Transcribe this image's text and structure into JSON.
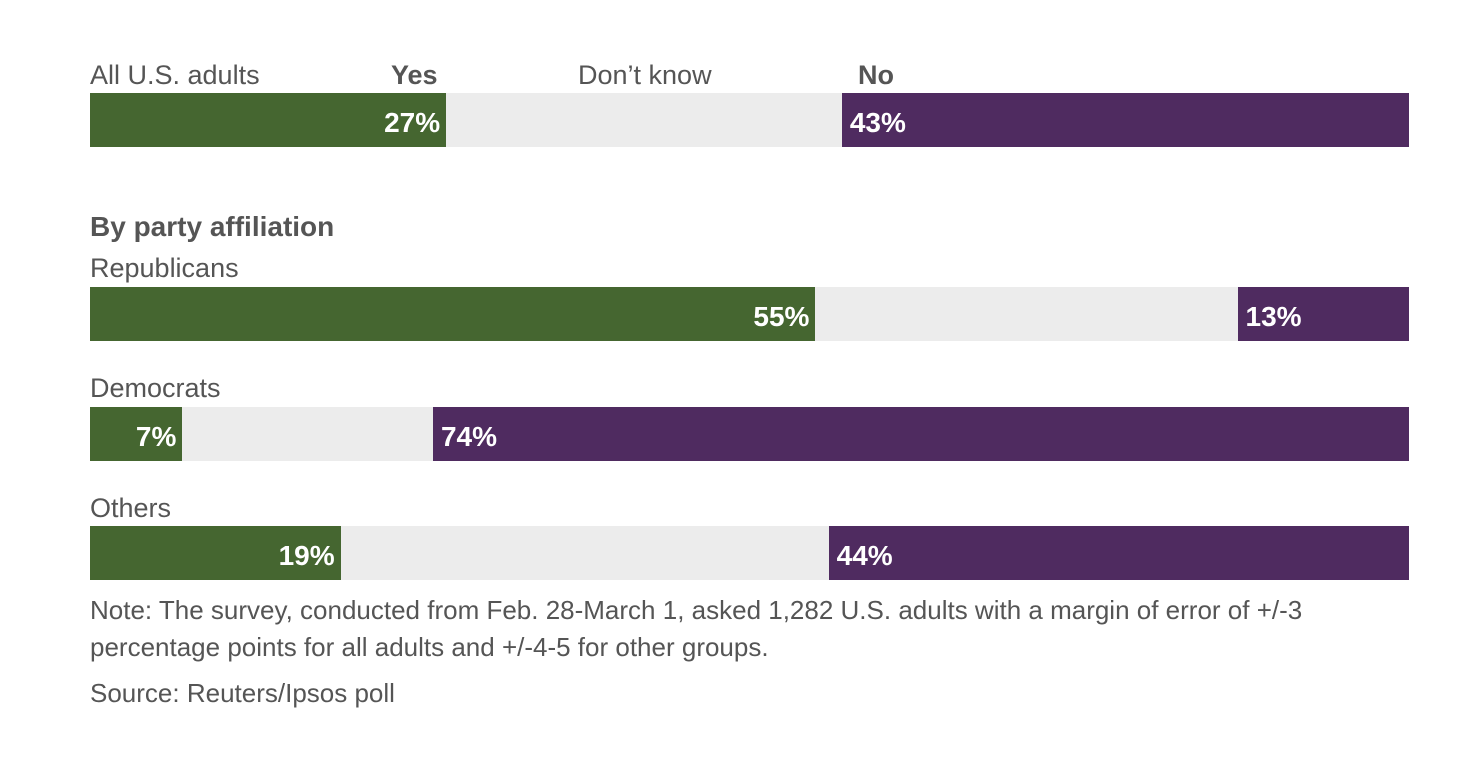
{
  "colors": {
    "yes": "#456630",
    "dont_know": "#ececec",
    "no": "#4f2b60",
    "text": "#555555"
  },
  "header": {
    "group_label": "All U.S. adults",
    "yes_label": "Yes",
    "dont_know_label": "Don’t know",
    "no_label": "No"
  },
  "section_title": "By party affiliation",
  "chart_data": {
    "type": "bar",
    "orientation": "horizontal-stacked",
    "categories": [
      "All U.S. adults",
      "Republicans",
      "Democrats",
      "Others"
    ],
    "series": [
      {
        "name": "Yes",
        "values": [
          27,
          55,
          7,
          19
        ]
      },
      {
        "name": "Don’t know",
        "values": [
          30,
          32,
          19,
          37
        ]
      },
      {
        "name": "No",
        "values": [
          43,
          13,
          74,
          44
        ]
      }
    ],
    "value_labels": {
      "yes": [
        "27%",
        "55%",
        "7%",
        "19%"
      ],
      "no": [
        "43%",
        "13%",
        "74%",
        "44%"
      ]
    },
    "xlim": [
      0,
      100
    ]
  },
  "note": "Note: The survey, conducted from Feb. 28-March 1, asked 1,282 U.S. adults with a margin of error of +/-3 percentage points for all adults and +/-4-5 for other groups.",
  "source": "Source: Reuters/Ipsos poll"
}
